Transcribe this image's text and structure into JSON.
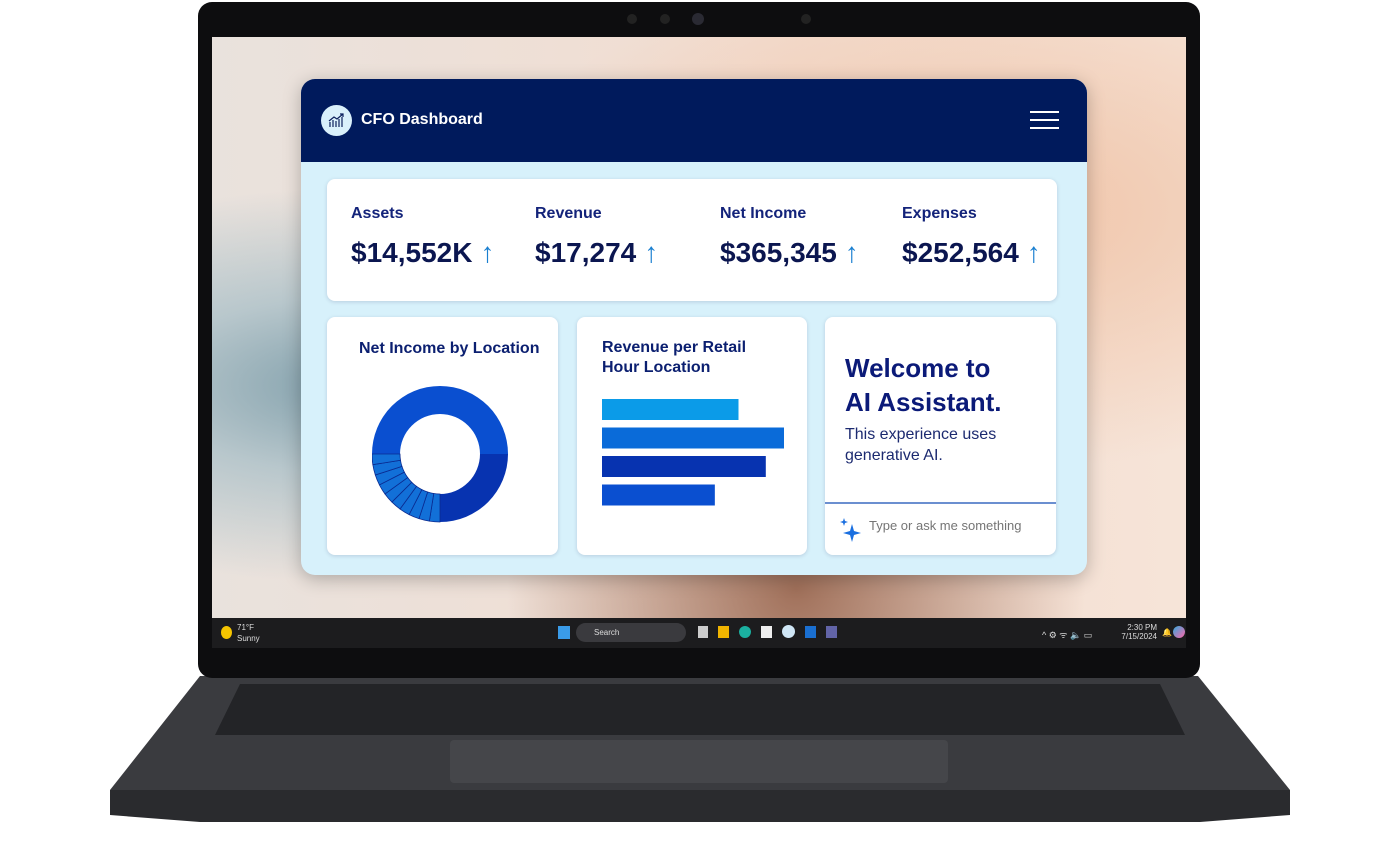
{
  "app": {
    "title": "CFO Dashboard",
    "logo_icon": "chart-trend-icon",
    "menu_icon": "hamburger-icon"
  },
  "kpis": [
    {
      "label": "Assets",
      "value": "$14,552K",
      "trend": "↑"
    },
    {
      "label": "Revenue",
      "value": "$17,274",
      "trend": "↑"
    },
    {
      "label": "Net Income",
      "value": "$365,345",
      "trend": "↑"
    },
    {
      "label": "Expenses",
      "value": "$252,564",
      "trend": "↑"
    }
  ],
  "chart_data": [
    {
      "type": "pie",
      "title": "Net Income by Location",
      "donut": true,
      "slices": [
        0.5,
        0.25,
        0.025,
        0.025,
        0.025,
        0.025,
        0.025,
        0.025,
        0.025,
        0.025,
        0.025,
        0.025
      ],
      "colors": [
        "#0a4fd0",
        "#0733b0",
        "#1270d8"
      ]
    },
    {
      "type": "bar",
      "orientation": "horizontal",
      "title": "Revenue per Retail Hour Location",
      "title_lines": [
        "Revenue per Retail",
        "Hour Location"
      ],
      "values": [
        0.75,
        1.0,
        0.9,
        0.62
      ],
      "colors": [
        "#0b9be8",
        "#0a6bd9",
        "#0733b0",
        "#0a4fd0"
      ]
    }
  ],
  "assistant": {
    "title_lines": [
      "Welcome to",
      "AI Assistant."
    ],
    "subtitle_lines": [
      "This experience uses",
      "generative AI."
    ],
    "placeholder": "Type or ask me something",
    "icon": "sparkle-icon"
  },
  "taskbar": {
    "weather_temp": "71°F",
    "weather_desc": "Sunny",
    "search": "Search",
    "time": "2:30 PM",
    "date": "7/15/2024"
  },
  "colors": {
    "header": "#001a5c",
    "body": "#d7f1fb",
    "accent": "#0a4fd0"
  }
}
